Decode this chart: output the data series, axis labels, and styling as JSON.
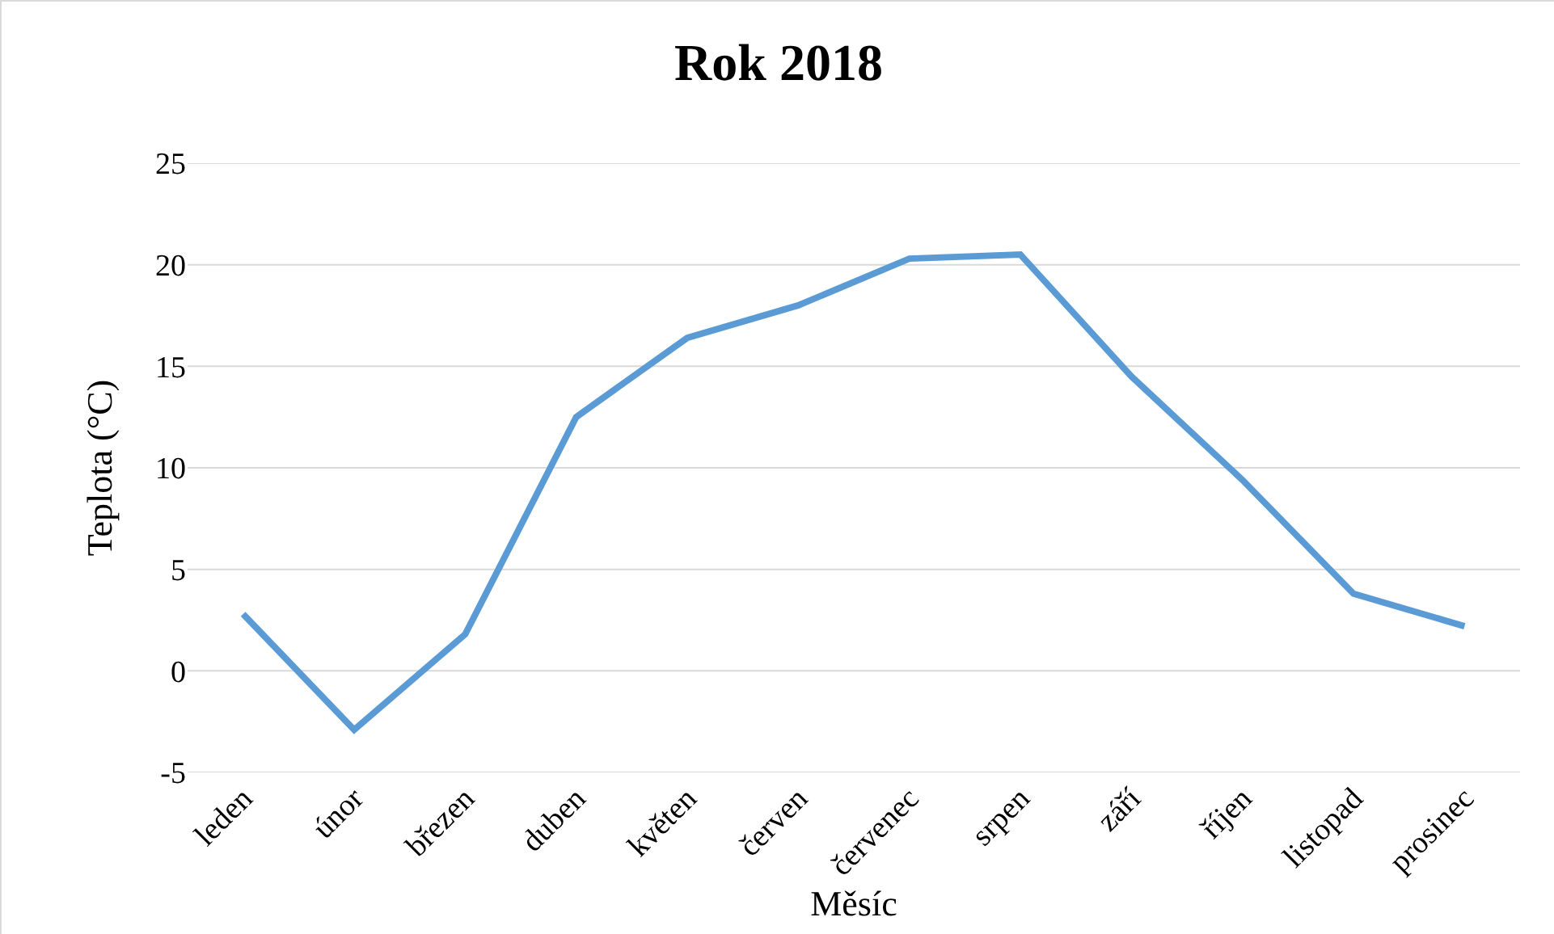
{
  "chart_data": {
    "type": "line",
    "title": "Rok 2018",
    "xlabel": "Měsíc",
    "ylabel": "Teplota (°C)",
    "categories": [
      "leden",
      "únor",
      "březen",
      "duben",
      "květen",
      "červen",
      "červenec",
      "srpen",
      "září",
      "říjen",
      "listopad",
      "prosinec"
    ],
    "series": [
      {
        "color": "#5b9bd5",
        "values": [
          2.8,
          -2.9,
          1.8,
          12.5,
          16.4,
          18.0,
          20.3,
          20.5,
          14.5,
          9.4,
          3.8,
          2.2
        ]
      }
    ],
    "ylim": [
      -5,
      25
    ],
    "yticks": [
      -5,
      0,
      5,
      10,
      15,
      20,
      25
    ],
    "grid": "y",
    "marker": "none",
    "line_style": "solid"
  }
}
